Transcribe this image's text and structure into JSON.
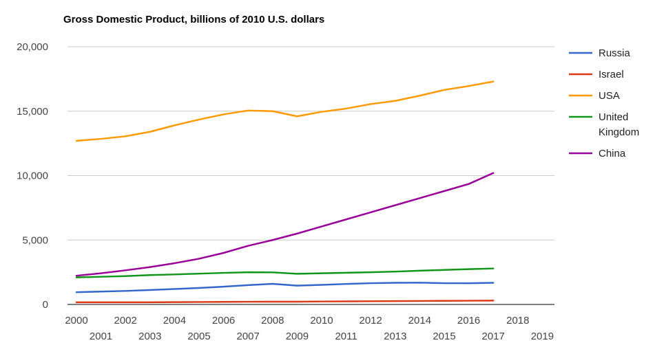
{
  "chart_data": {
    "type": "line",
    "title": "Gross Domestic Product, billions of 2010 U.S. dollars",
    "xlabel": "",
    "ylabel": "",
    "xlim": [
      2000,
      2019
    ],
    "ylim": [
      0,
      20000
    ],
    "y_ticks": [
      0,
      5000,
      10000,
      15000,
      20000
    ],
    "y_tick_labels": [
      "0",
      "5,000",
      "10,000",
      "15,000",
      "20,000"
    ],
    "x_ticks": [
      2000,
      2001,
      2002,
      2003,
      2004,
      2005,
      2006,
      2007,
      2008,
      2009,
      2010,
      2011,
      2012,
      2013,
      2014,
      2015,
      2016,
      2017,
      2018,
      2019
    ],
    "x_tick_labels": [
      "2000",
      "2001",
      "2002",
      "2003",
      "2004",
      "2005",
      "2006",
      "2007",
      "2008",
      "2009",
      "2010",
      "2011",
      "2012",
      "2013",
      "2014",
      "2015",
      "2016",
      "2017",
      "2018",
      "2019"
    ],
    "grid": true,
    "legend_position": "right",
    "x": [
      2000,
      2001,
      2002,
      2003,
      2004,
      2005,
      2006,
      2007,
      2008,
      2009,
      2010,
      2011,
      2012,
      2013,
      2014,
      2015,
      2016,
      2017
    ],
    "series": [
      {
        "name": "Russia",
        "color": "#3366cc",
        "values": [
          950,
          1000,
          1050,
          1120,
          1200,
          1280,
          1380,
          1500,
          1600,
          1460,
          1520,
          1590,
          1650,
          1680,
          1690,
          1650,
          1650,
          1680
        ]
      },
      {
        "name": "Israel",
        "color": "#dc3912",
        "values": [
          165,
          165,
          165,
          170,
          180,
          190,
          200,
          210,
          215,
          215,
          230,
          240,
          250,
          260,
          270,
          280,
          290,
          300
        ]
      },
      {
        "name": "USA",
        "color": "#ff9900",
        "values": [
          12700,
          12850,
          13050,
          13400,
          13900,
          14350,
          14750,
          15050,
          15000,
          14600,
          14950,
          15200,
          15550,
          15800,
          16200,
          16650,
          16950,
          17300
        ]
      },
      {
        "name": "United Kingdom",
        "color": "#109618",
        "values": [
          2100,
          2150,
          2200,
          2280,
          2330,
          2390,
          2450,
          2500,
          2490,
          2380,
          2420,
          2460,
          2500,
          2550,
          2620,
          2680,
          2740,
          2790
        ]
      },
      {
        "name": "China",
        "color": "#990099",
        "values": [
          2230,
          2420,
          2650,
          2900,
          3200,
          3550,
          4000,
          4550,
          5000,
          5500,
          6050,
          6600,
          7150,
          7700,
          8250,
          8800,
          9350,
          10200
        ]
      }
    ],
    "legend_labels": [
      {
        "key": "russia",
        "lines": [
          "Russia"
        ]
      },
      {
        "key": "israel",
        "lines": [
          "Israel"
        ]
      },
      {
        "key": "usa",
        "lines": [
          "USA"
        ]
      },
      {
        "key": "uk",
        "lines": [
          "United",
          "Kingdom"
        ]
      },
      {
        "key": "china",
        "lines": [
          "China"
        ]
      }
    ]
  }
}
